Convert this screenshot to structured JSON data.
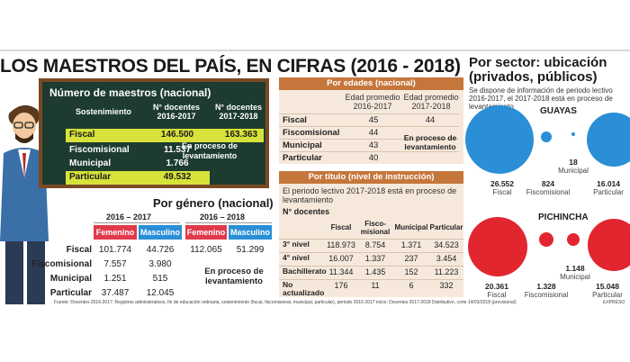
{
  "title": "LOS MAESTROS DEL PAÍS, EN CIFRAS (2016 - 2018)",
  "board": {
    "title": "Número de maestros (nacional)",
    "col_sostenimiento": "Sostenimiento",
    "col_2016": "N° docentes 2016-2017",
    "col_2017": "N° docentes 2017-2018",
    "rows": [
      {
        "label": "Fiscal",
        "v2016": "146.500",
        "v2017": "163.363",
        "highlight": true
      },
      {
        "label": "Fiscomisional",
        "v2016": "11.537",
        "v2017": "",
        "highlight": false
      },
      {
        "label": "Municipal",
        "v2016": "1.766",
        "v2017": "",
        "highlight": false
      },
      {
        "label": "Particular",
        "v2016": "49.532",
        "v2017": "",
        "highlight": true
      }
    ],
    "note": "En proceso de levantamiento"
  },
  "genero": {
    "title": "Por género (nacional)",
    "year1": "2016 – 2017",
    "year2": "2016 – 2018",
    "femenino": "Femenino",
    "masculino": "Masculino",
    "rows": [
      {
        "label": "Fiscal",
        "f1": "101.774",
        "m1": "44.726",
        "f2": "112.065",
        "m2": "51.299"
      },
      {
        "label": "Fiscomisional",
        "f1": "7.557",
        "m1": "3.980"
      },
      {
        "label": "Municipal",
        "f1": "1.251",
        "m1": "515"
      },
      {
        "label": "Particular",
        "f1": "37.487",
        "m1": "12.045"
      }
    ],
    "note": "En proceso de levantamiento"
  },
  "edades": {
    "title": "Por edades (nacional)",
    "col1": "Edad promedio 2016-2017",
    "col2": "Edad promedio 2017-2018",
    "rows": [
      {
        "label": "Fiscal",
        "v1": "45",
        "v2": "44"
      },
      {
        "label": "Fiscomisional",
        "v1": "44",
        "v2": ""
      },
      {
        "label": "Municipal",
        "v1": "43",
        "v2": ""
      },
      {
        "label": "Particular",
        "v1": "40",
        "v2": ""
      }
    ],
    "note": "En proceso de levantamiento"
  },
  "titulo": {
    "title": "Por título (nivel de instrucción)",
    "intro": "El periodo lectivo 2017-2018 está en proceso de levantamiento",
    "subtitle": "N° docentes",
    "headers": [
      "Fiscal",
      "Fisco-misional",
      "Municipal",
      "Particular"
    ],
    "rows": [
      {
        "label": "3° nivel",
        "vals": [
          "118.973",
          "8.754",
          "1.371",
          "34.523"
        ]
      },
      {
        "label": "4° nivel",
        "vals": [
          "16.007",
          "1.337",
          "237",
          "3.454"
        ]
      },
      {
        "label": "Bachillerato",
        "vals": [
          "11.344",
          "1.435",
          "152",
          "11.223"
        ]
      },
      {
        "label": "No actualizado",
        "vals": [
          "176",
          "11",
          "6",
          "332"
        ]
      }
    ]
  },
  "sector": {
    "title": "Por sector: ubicación (privados, públicos)",
    "intro": "Se dispone de información de periodo lectivo 2016-2017, el 2017-2018 está en proceso de levantamiento",
    "regions": [
      {
        "name": "GUAYAS",
        "color": "#2a8fd6",
        "items": [
          {
            "label": "Fiscal",
            "value": 26552,
            "text": "26.552"
          },
          {
            "label": "Fiscomisional",
            "value": 824,
            "text": "824"
          },
          {
            "label": "Municipal",
            "value": 18,
            "text": "18"
          },
          {
            "label": "Particular",
            "value": 16014,
            "text": "16.014"
          }
        ]
      },
      {
        "name": "PICHINCHA",
        "color": "#e2262f",
        "items": [
          {
            "label": "Fiscal",
            "value": 20361,
            "text": "20.361"
          },
          {
            "label": "Fiscomisional",
            "value": 1328,
            "text": "1.328"
          },
          {
            "label": "Municipal",
            "value": 1148,
            "text": "1.148"
          },
          {
            "label": "Particular",
            "value": 15048,
            "text": "15.048"
          }
        ]
      }
    ]
  },
  "chart_data": {
    "type": "table",
    "title": "LOS MAESTROS DEL PAÍS, EN CIFRAS (2016 - 2018)",
    "categories": [
      "Fiscal",
      "Fiscomisional",
      "Municipal",
      "Particular"
    ],
    "series": [
      {
        "name": "N° docentes 2016-2017",
        "values": [
          146500,
          11537,
          1766,
          49532
        ]
      },
      {
        "name": "N° docentes 2017-2018",
        "values": [
          163363,
          null,
          null,
          null
        ]
      },
      {
        "name": "Guayas 2016-2017",
        "values": [
          26552,
          824,
          18,
          16014
        ]
      },
      {
        "name": "Pichincha 2016-2017",
        "values": [
          20361,
          1328,
          1148,
          15048
        ]
      }
    ]
  },
  "source": "Fuente: Docentes 2016-2017: Registros administrativos, fin de educación ordinaria, sostenimiento (fiscal, fiscomisional, municipal, particular), periodo 2016-2017 inicio; Docentes 2017-2018 Distributivo, corte 14/03/2018 (provisional)",
  "brand": "EXPRESO"
}
